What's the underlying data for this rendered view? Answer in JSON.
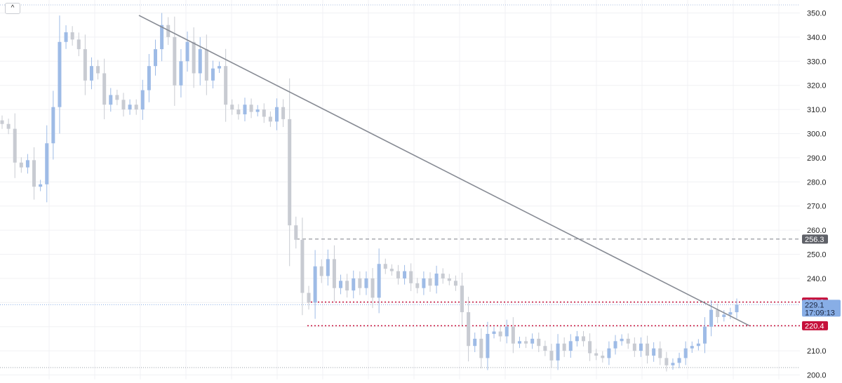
{
  "toolbar": {
    "collapse_icon": "chevron-up-icon",
    "collapse_glyph": "^"
  },
  "colors": {
    "up_candle": "#9ebbe6",
    "down_candle": "#c8cbd2",
    "trendline": "#878b94",
    "resistance_dashed": "#8c8f96",
    "level_red": "#c6103b",
    "current_price": "#88aee6",
    "grid": "#f0f1f4",
    "axis_text": "#222222"
  },
  "chart_data": {
    "type": "candlestick",
    "ylim": [
      200,
      352
    ],
    "y_ticks": [
      "350.0",
      "340.0",
      "330.0",
      "320.0",
      "310.0",
      "300.0",
      "290.0",
      "280.0",
      "270.0",
      "260.0",
      "250.0",
      "240.0",
      "230.0",
      "220.0",
      "210.0",
      "200.0"
    ],
    "grid": true,
    "closes": [
      304,
      302,
      288,
      286,
      289,
      278,
      279,
      296,
      311,
      338,
      342,
      339,
      335,
      322,
      328,
      325,
      312,
      316,
      314,
      310,
      312,
      310,
      318,
      328,
      335,
      345,
      340,
      320,
      330,
      338,
      325,
      335,
      322,
      327,
      328,
      312,
      310,
      308,
      312,
      309,
      310,
      307,
      305,
      311,
      306,
      262,
      256,
      234,
      230,
      245,
      241,
      248,
      236,
      239,
      235,
      240,
      236,
      240,
      232,
      246,
      244,
      243,
      240,
      243,
      238,
      236,
      240,
      237,
      242,
      240,
      239,
      237,
      226,
      212,
      215,
      207,
      217,
      218,
      216,
      220,
      213,
      214,
      213,
      215,
      212,
      210,
      206,
      213,
      210,
      214,
      216,
      214,
      209,
      208,
      207,
      211,
      214,
      215,
      213,
      210,
      213,
      208,
      211,
      207,
      204,
      205,
      207,
      211,
      212,
      213,
      220,
      227,
      224,
      225,
      226,
      229.1
    ],
    "levels": [
      {
        "value": 256.3,
        "label": "256.3",
        "style": "dashed"
      },
      {
        "value": 230.2,
        "label": "230.2",
        "style": "dotted-red"
      },
      {
        "value": 220.4,
        "label": "220.4",
        "style": "dotted-red"
      },
      {
        "value": 229.1,
        "label": "229.1",
        "style": "current"
      }
    ],
    "trendline": {
      "from": 349,
      "to": 220.4
    },
    "current_price": {
      "value": 229.1,
      "label": "229.1",
      "countdown": "17:09:13"
    }
  }
}
